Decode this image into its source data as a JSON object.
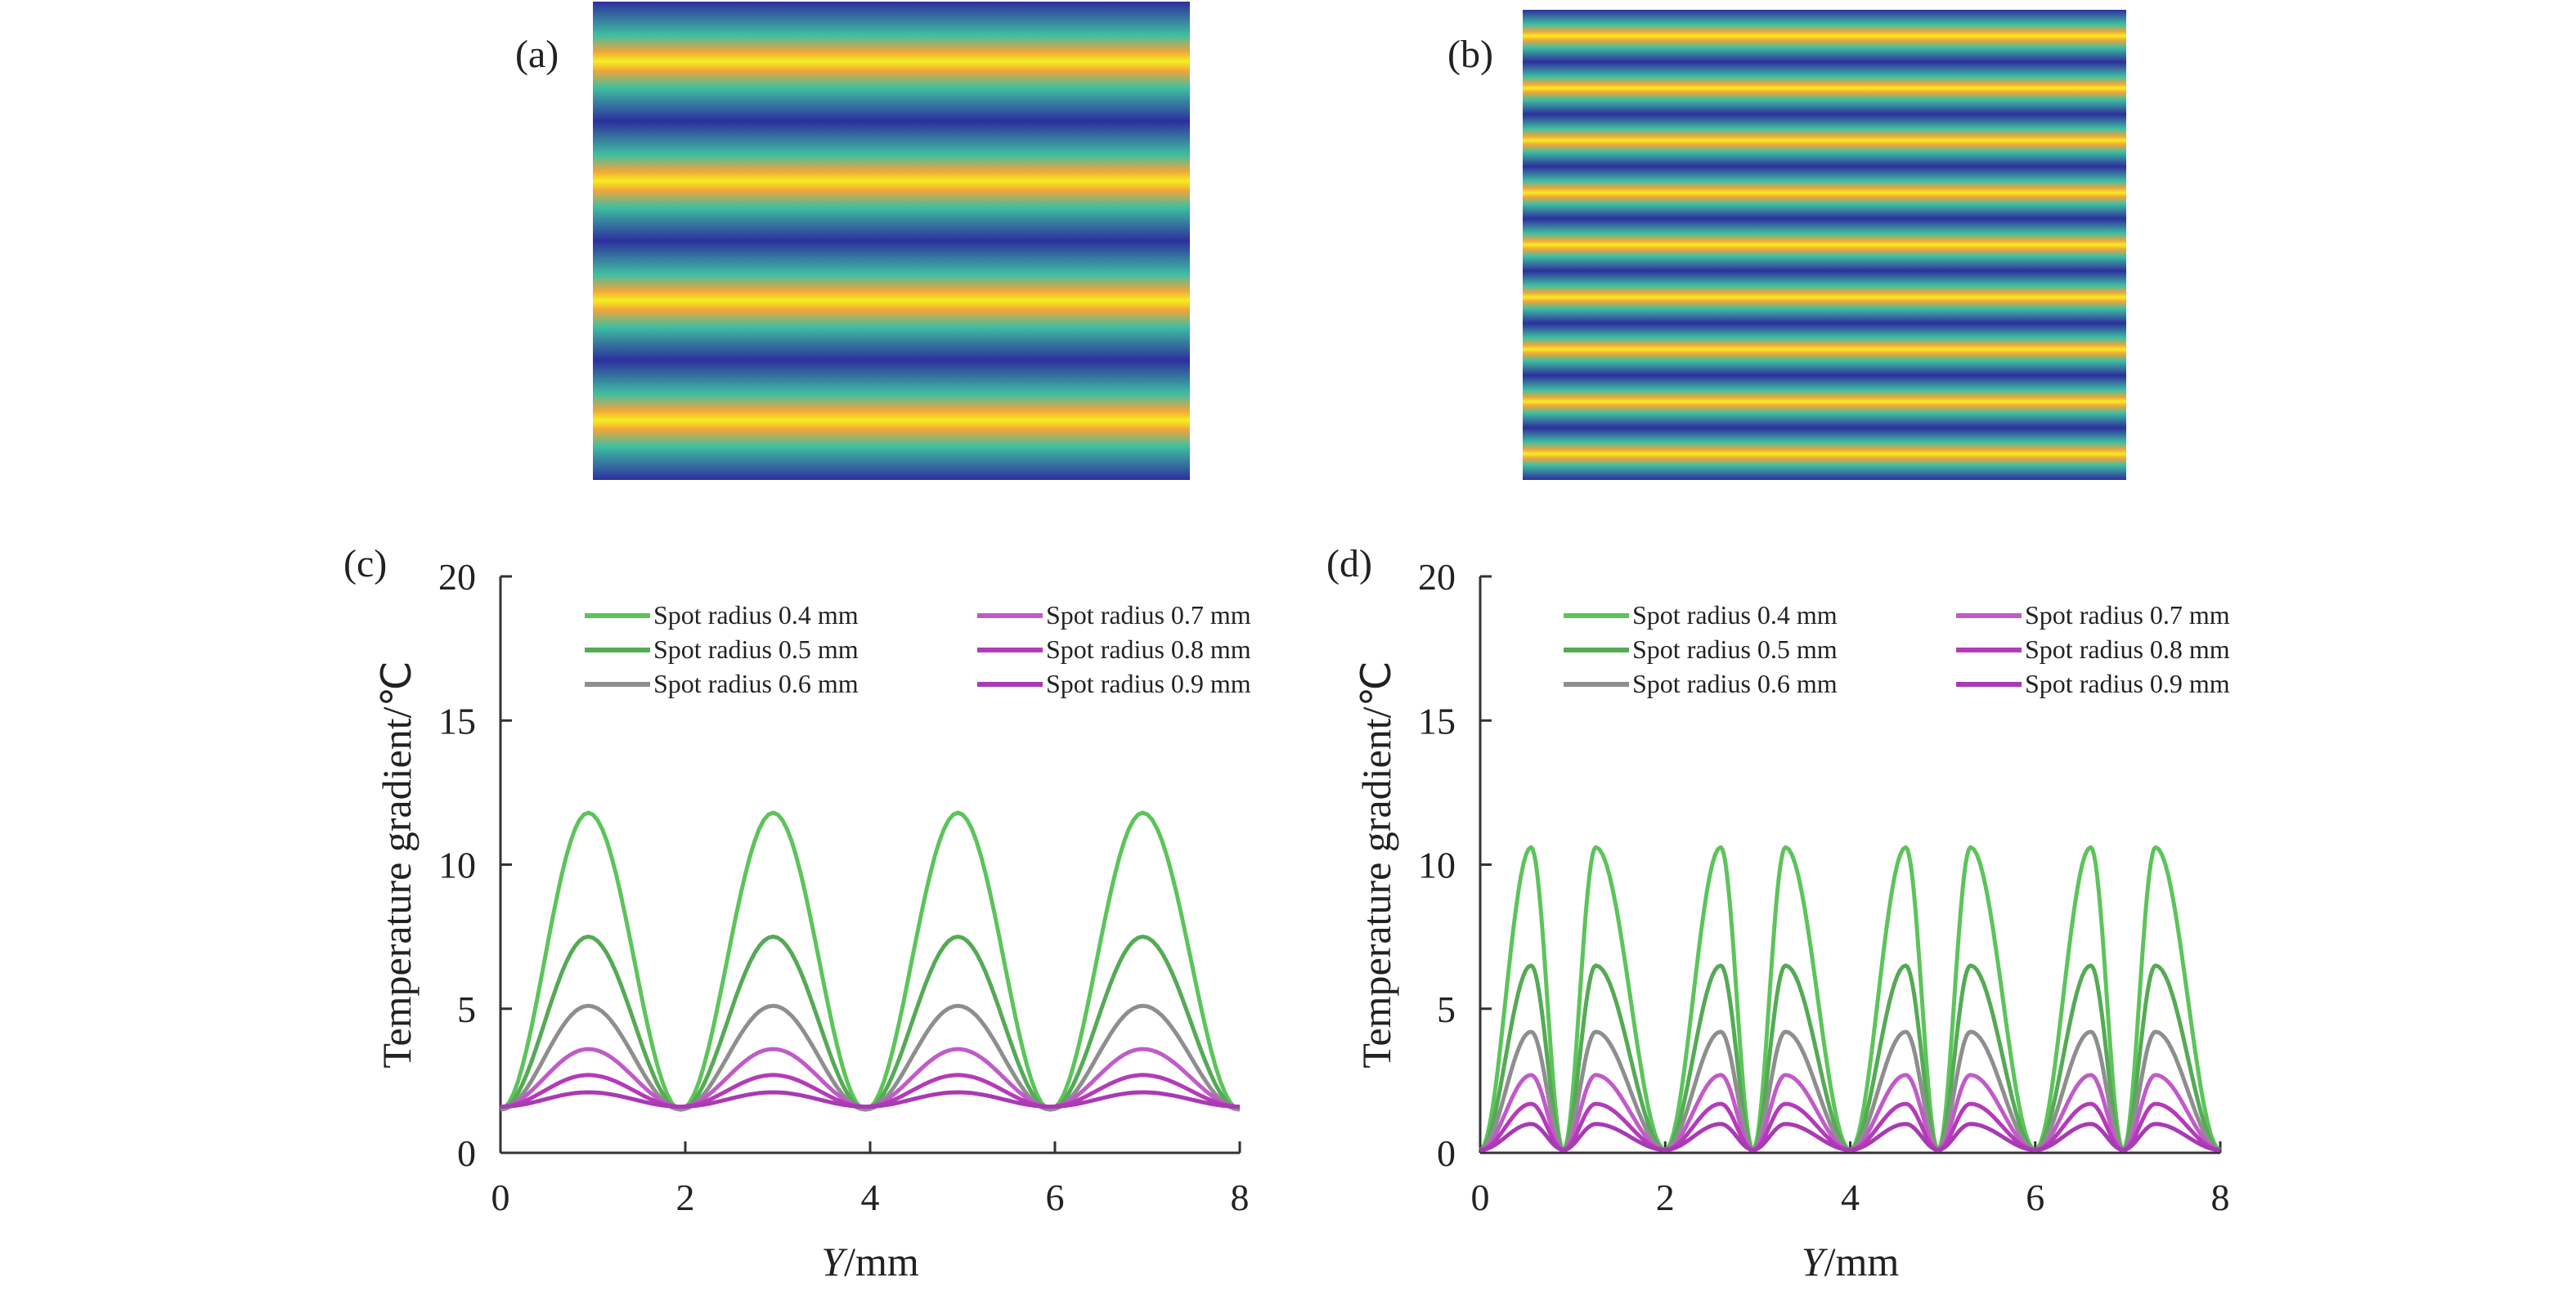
{
  "panels": {
    "a": {
      "label": "(a)",
      "stripe_period": 2,
      "color_top": "#f5ee20",
      "color_mid": "#3fbfa0",
      "color_low": "#2d2f9e"
    },
    "b": {
      "label": "(b)",
      "stripe_period": 1,
      "color_top": "#f5ee20",
      "color_mid": "#3fbfa0",
      "color_low": "#2d2f9e"
    }
  },
  "chart_data": [
    {
      "panel": "c",
      "label": "(c)",
      "type": "line",
      "xlabel_italic": "Y",
      "xlabel_unit": "/mm",
      "ylabel": "Temperature gradient/℃",
      "xlim": [
        0,
        8
      ],
      "ylim": [
        0,
        20
      ],
      "xticks": [
        "0",
        "2",
        "4",
        "6",
        "8"
      ],
      "yticks": [
        "0",
        "5",
        "10",
        "15",
        "20"
      ],
      "peaks_x": [
        0.95,
        2.95,
        4.95,
        6.95
      ],
      "valleys_x": [
        0,
        1.95,
        3.95,
        5.95,
        8
      ],
      "series": [
        {
          "name": "Spot radius 0.4 mm",
          "color": "#5cc45a",
          "peak": 11.8,
          "valley": 1.5
        },
        {
          "name": "Spot radius 0.5 mm",
          "color": "#55aa55",
          "peak": 7.5,
          "valley": 1.5
        },
        {
          "name": "Spot radius 0.6 mm",
          "color": "#8e8e8e",
          "peak": 5.1,
          "valley": 1.5
        },
        {
          "name": "Spot radius 0.7 mm",
          "color": "#c05bc8",
          "peak": 3.6,
          "valley": 1.6
        },
        {
          "name": "Spot radius 0.8 mm",
          "color": "#b43bb8",
          "peak": 2.7,
          "valley": 1.6
        },
        {
          "name": "Spot radius 0.9 mm",
          "color": "#a83ab4",
          "peak": 2.1,
          "valley": 1.6
        }
      ]
    },
    {
      "panel": "d",
      "label": "(d)",
      "type": "line",
      "xlabel_italic": "Y",
      "xlabel_unit": "/mm",
      "ylabel": "Temperature gradient/℃",
      "xlim": [
        0,
        8
      ],
      "ylim": [
        0,
        20
      ],
      "xticks": [
        "0",
        "2",
        "4",
        "6",
        "8"
      ],
      "yticks": [
        "0",
        "5",
        "10",
        "15",
        "20"
      ],
      "peaks_x": [
        0.55,
        1.25,
        2.6,
        3.3,
        4.6,
        5.3,
        6.6,
        7.3
      ],
      "valleys_x": [
        0,
        0.9,
        2.0,
        2.95,
        4.0,
        4.95,
        6.0,
        6.95,
        8
      ],
      "series": [
        {
          "name": "Spot radius 0.4 mm",
          "color": "#5cc45a",
          "peak": 10.6,
          "valley": 0.1
        },
        {
          "name": "Spot radius 0.5 mm",
          "color": "#55aa55",
          "peak": 6.5,
          "valley": 0.1
        },
        {
          "name": "Spot radius 0.6 mm",
          "color": "#8e8e8e",
          "peak": 4.2,
          "valley": 0.1
        },
        {
          "name": "Spot radius 0.7 mm",
          "color": "#c05bc8",
          "peak": 2.7,
          "valley": 0.1
        },
        {
          "name": "Spot radius 0.8 mm",
          "color": "#b43bb8",
          "peak": 1.7,
          "valley": 0.1
        },
        {
          "name": "Spot radius 0.9 mm",
          "color": "#a83ab4",
          "peak": 1.0,
          "valley": 0.1
        }
      ]
    }
  ]
}
